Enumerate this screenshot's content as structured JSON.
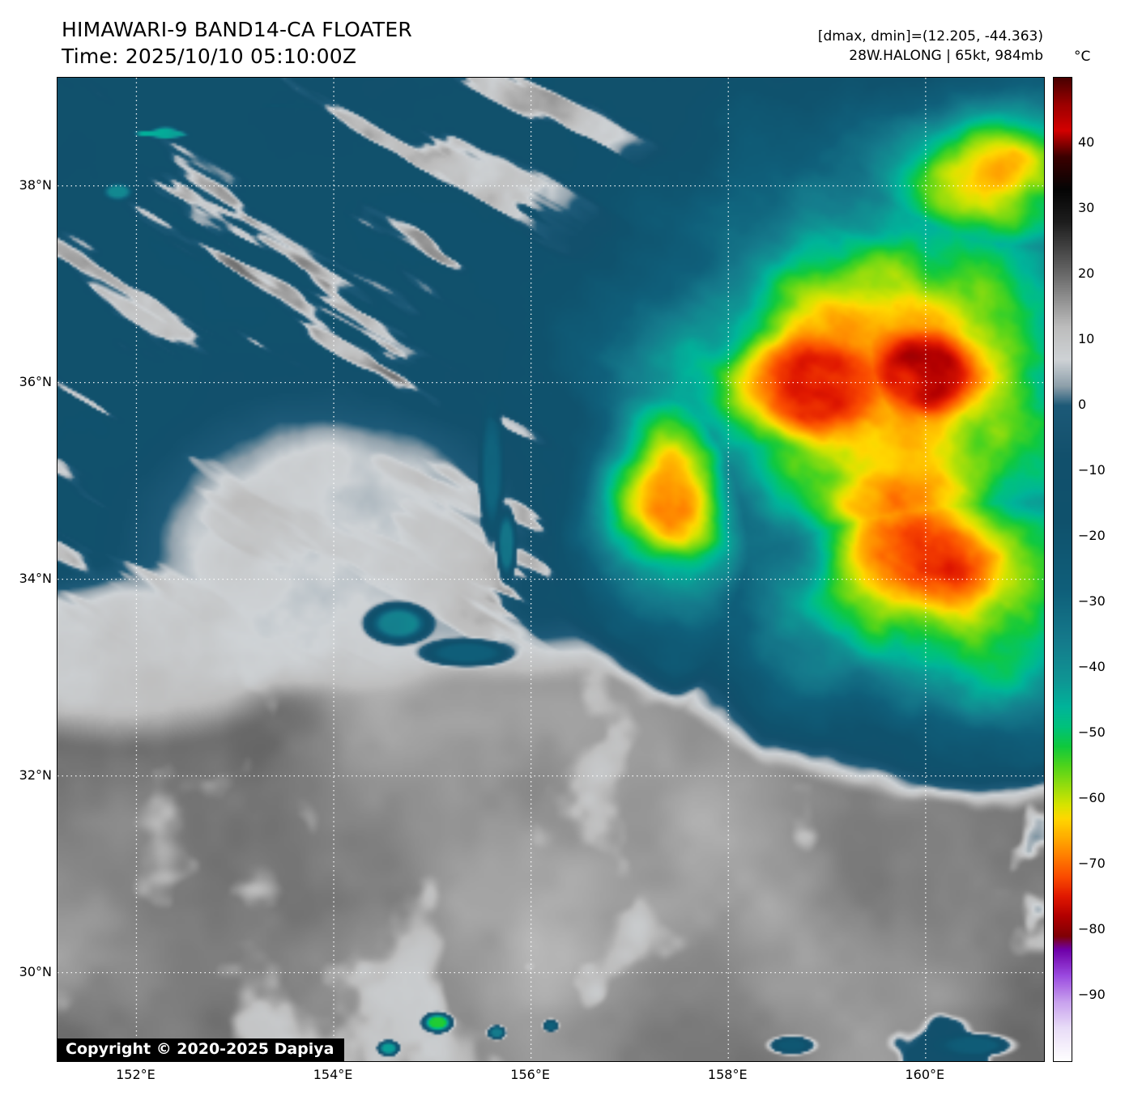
{
  "header": {
    "title": "HIMAWARI-9 BAND14-CA FLOATER",
    "time": "Time: 2025/10/10 05:10:00Z",
    "dmax_dmin": "[dmax, dmin]=(12.205, -44.363)",
    "storm_info": "28W.HALONG | 65kt, 984mb"
  },
  "copyright": "Copyright © 2020-2025 Dapiya",
  "colorbar": {
    "unit": "°C",
    "range": [
      50,
      -100
    ],
    "ticks": [
      {
        "value": 40,
        "label": "40"
      },
      {
        "value": 30,
        "label": "30"
      },
      {
        "value": 20,
        "label": "20"
      },
      {
        "value": 10,
        "label": "10"
      },
      {
        "value": 0,
        "label": "0"
      },
      {
        "value": -10,
        "label": "−10"
      },
      {
        "value": -20,
        "label": "−20"
      },
      {
        "value": -30,
        "label": "−30"
      },
      {
        "value": -40,
        "label": "−40"
      },
      {
        "value": -50,
        "label": "−50"
      },
      {
        "value": -60,
        "label": "−60"
      },
      {
        "value": -70,
        "label": "−70"
      },
      {
        "value": -80,
        "label": "−80"
      },
      {
        "value": -90,
        "label": "−90"
      }
    ],
    "stops": [
      [
        50,
        "#4a0000"
      ],
      [
        46,
        "#9c0000"
      ],
      [
        42,
        "#d40000"
      ],
      [
        38,
        "#3c0000"
      ],
      [
        33,
        "#050505"
      ],
      [
        28,
        "#1e1e1e"
      ],
      [
        20,
        "#6a6a6a"
      ],
      [
        12,
        "#bdbdbd"
      ],
      [
        7,
        "#cfd3d6"
      ],
      [
        3,
        "#8fa0ab"
      ],
      [
        0,
        "#1d5a78"
      ],
      [
        -8,
        "#12506c"
      ],
      [
        -18,
        "#0f526d"
      ],
      [
        -28,
        "#0f5f7a"
      ],
      [
        -36,
        "#157b8c"
      ],
      [
        -42,
        "#0f9694"
      ],
      [
        -46,
        "#00b49a"
      ],
      [
        -49,
        "#00c27c"
      ],
      [
        -52,
        "#10c93e"
      ],
      [
        -55,
        "#4fd41c"
      ],
      [
        -58,
        "#94dd0e"
      ],
      [
        -61,
        "#d8e400"
      ],
      [
        -63,
        "#ffd800"
      ],
      [
        -66,
        "#ffab00"
      ],
      [
        -69,
        "#ff7b00"
      ],
      [
        -72,
        "#fa4a00"
      ],
      [
        -75,
        "#e01800"
      ],
      [
        -78,
        "#b20000"
      ],
      [
        -81,
        "#800006"
      ],
      [
        -83,
        "#6f00a8"
      ],
      [
        -87,
        "#9b4ae0"
      ],
      [
        -91,
        "#c9a1ee"
      ],
      [
        -95,
        "#e9ddf8"
      ],
      [
        -100,
        "#ffffff"
      ]
    ]
  },
  "map": {
    "extent": {
      "lon_min": 151.2,
      "lon_max": 161.2,
      "lat_min": 29.1,
      "lat_max": 39.1
    },
    "lat_ticks": [
      {
        "deg": 38,
        "label": "38°N"
      },
      {
        "deg": 36,
        "label": "36°N"
      },
      {
        "deg": 34,
        "label": "34°N"
      },
      {
        "deg": 32,
        "label": "32°N"
      },
      {
        "deg": 30,
        "label": "30°N"
      }
    ],
    "lon_ticks": [
      {
        "deg": 152,
        "label": "152°E"
      },
      {
        "deg": 154,
        "label": "154°E"
      },
      {
        "deg": 156,
        "label": "156°E"
      },
      {
        "deg": 158,
        "label": "158°E"
      },
      {
        "deg": 160,
        "label": "160°E"
      }
    ],
    "grid_color": "#ffffff"
  },
  "scene": {
    "base": {
      "navy_temp": -11,
      "gray_temp": 17,
      "boundary_v": 0.565
    },
    "storm": {
      "lobes": [
        [
          0.85,
          0.3,
          0.34,
          0.31
        ],
        [
          0.9,
          0.52,
          0.27,
          0.18
        ],
        [
          0.625,
          0.44,
          0.11,
          0.17
        ],
        [
          0.95,
          0.1,
          0.2,
          0.13
        ]
      ],
      "hot_spots": [
        [
          0.755,
          0.315,
          0.105,
          0.062
        ],
        [
          0.868,
          0.47,
          0.115,
          0.085
        ],
        [
          0.88,
          0.3,
          0.07,
          0.05
        ]
      ],
      "edge_temp": -18,
      "core_delta": -46,
      "hot_delta": -11
    },
    "gray_masses": [
      [
        0.27,
        0.475,
        0.21,
        0.155
      ],
      [
        0.07,
        0.585,
        0.17,
        0.09
      ]
    ],
    "spots": [
      [
        0.345,
        0.555,
        0.042,
        0.026,
        -38
      ],
      [
        0.415,
        0.585,
        0.06,
        0.018,
        -28
      ],
      [
        0.44,
        0.4,
        0.016,
        0.09,
        -30
      ],
      [
        0.455,
        0.475,
        0.013,
        0.05,
        -34
      ],
      [
        0.385,
        0.962,
        0.02,
        0.013,
        -52
      ],
      [
        0.335,
        0.988,
        0.014,
        0.01,
        -44
      ],
      [
        0.445,
        0.972,
        0.012,
        0.009,
        -36
      ],
      [
        0.5,
        0.965,
        0.01,
        0.008,
        -28
      ],
      [
        0.93,
        0.985,
        0.05,
        0.015,
        -25
      ],
      [
        0.745,
        0.985,
        0.03,
        0.012,
        -22
      ],
      [
        0.06,
        0.115,
        0.02,
        0.012,
        -40
      ]
    ]
  }
}
